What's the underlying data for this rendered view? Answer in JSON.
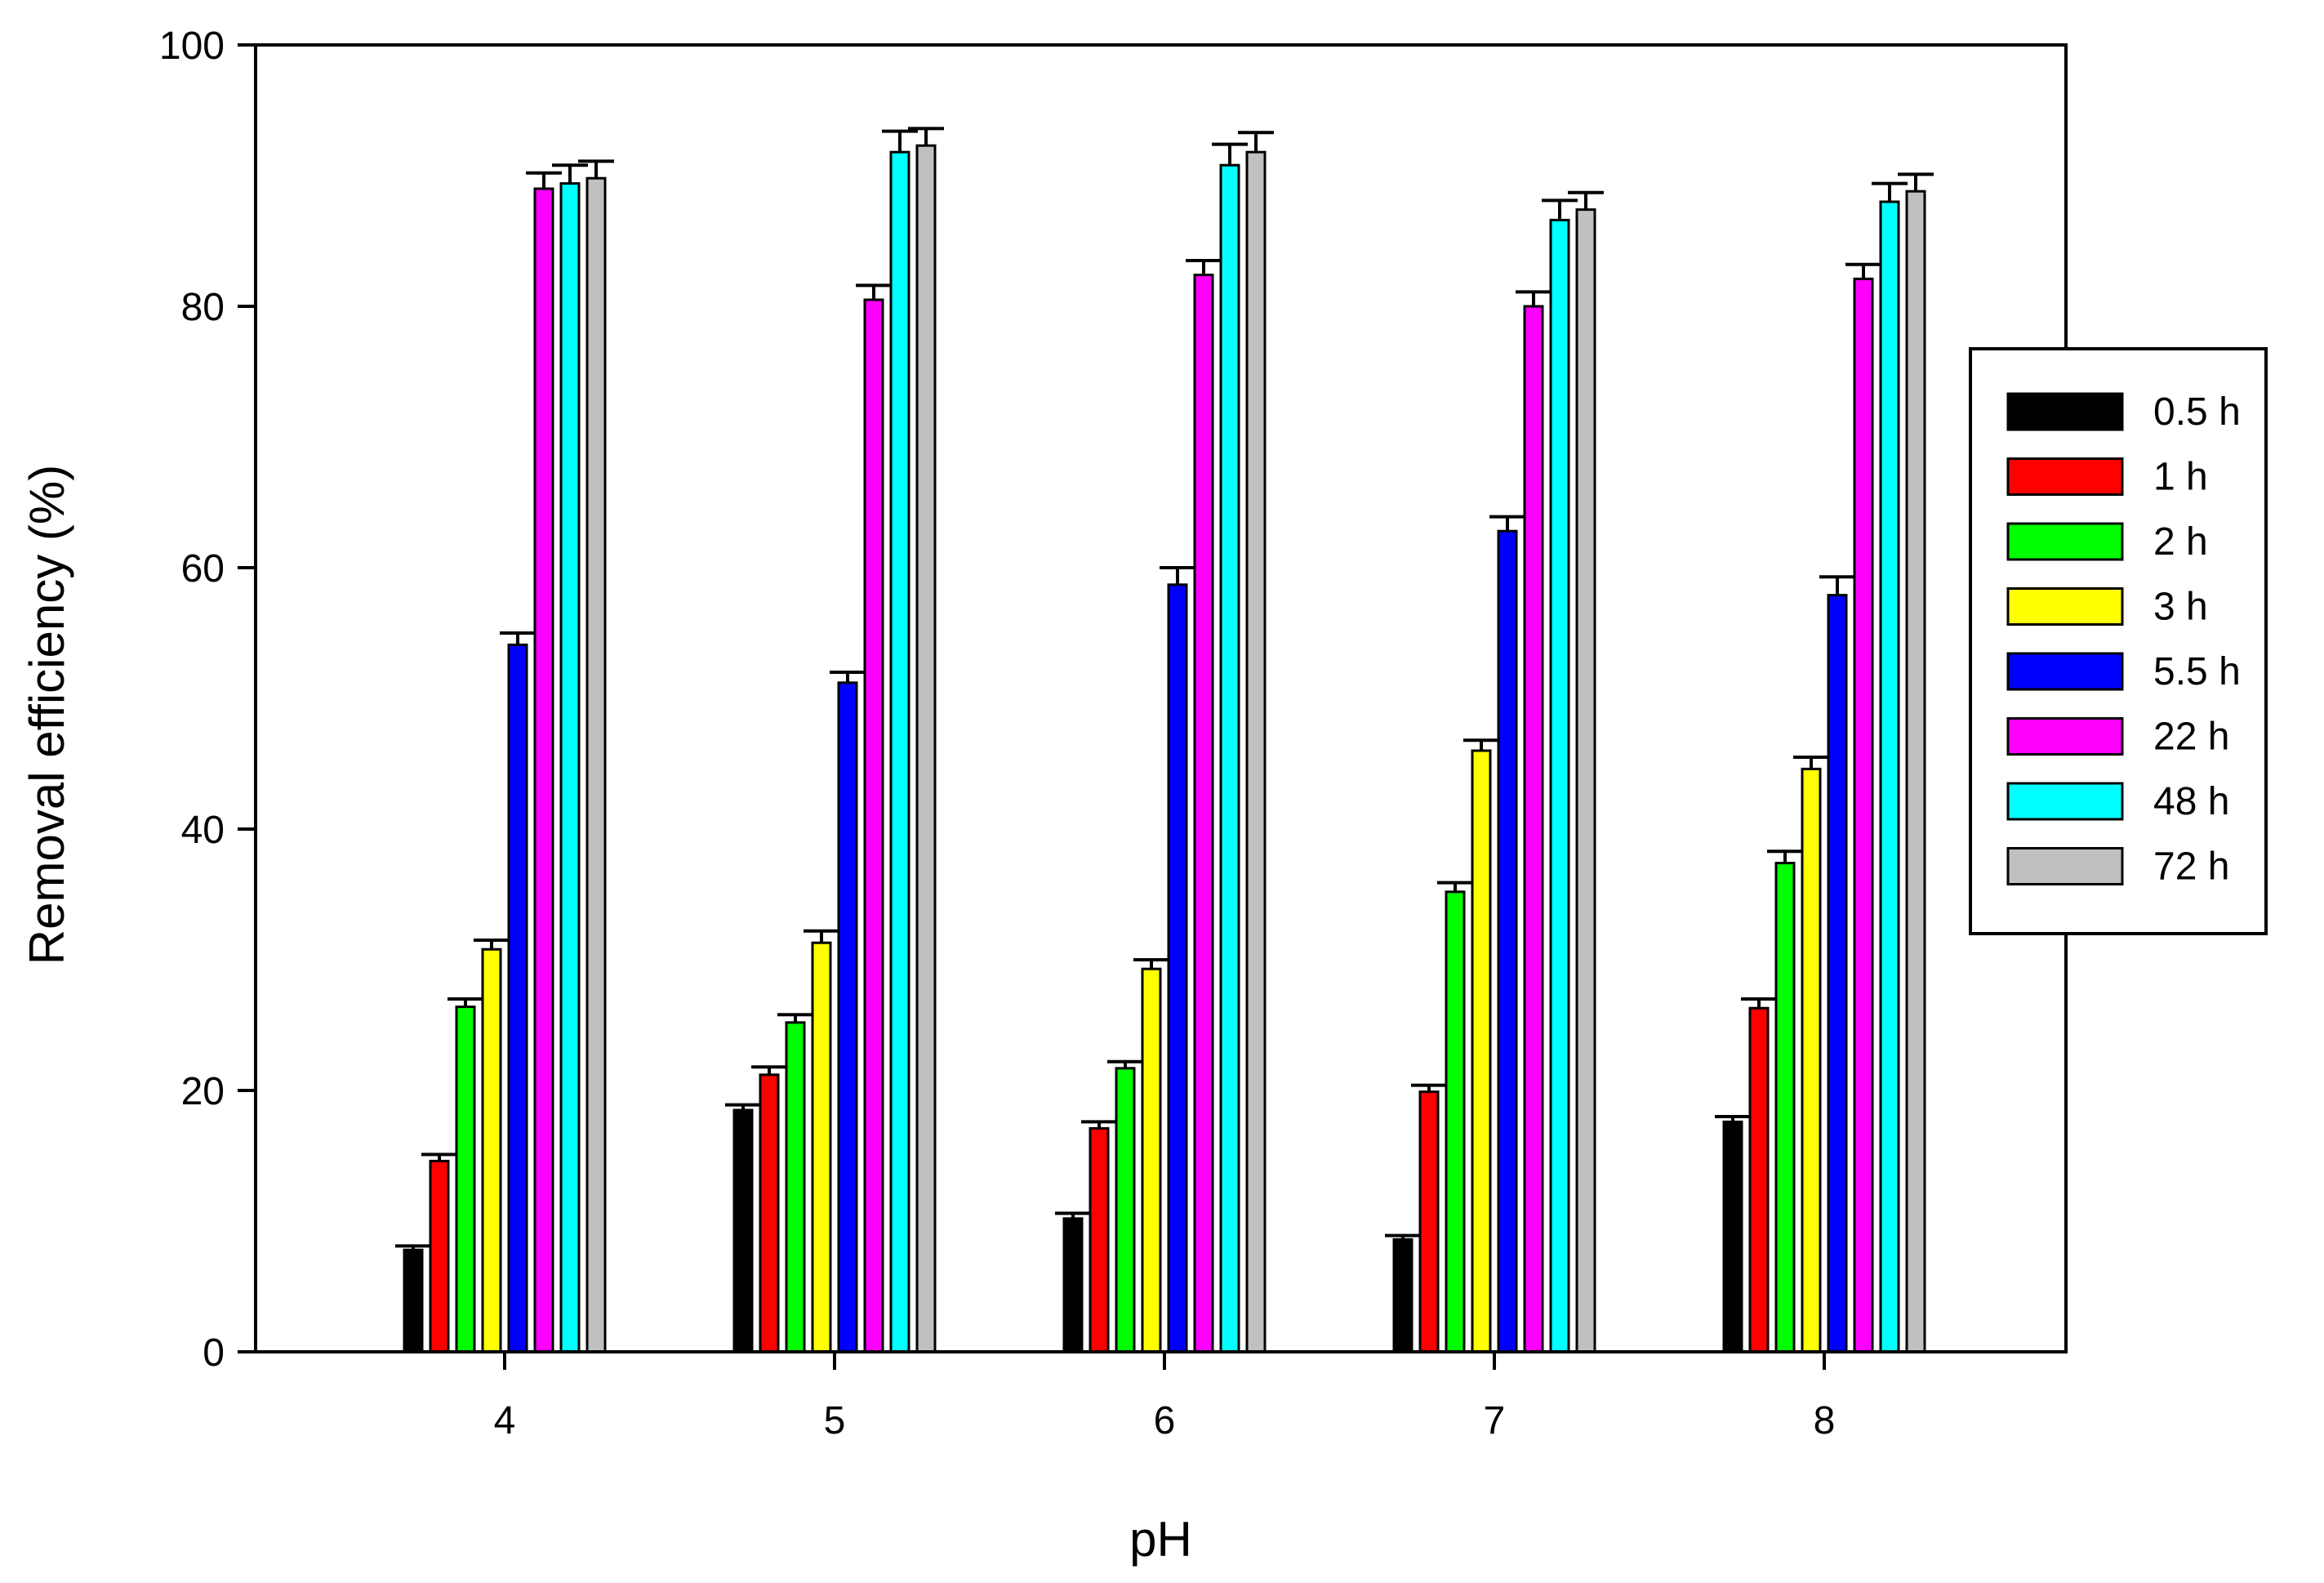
{
  "chart_data": {
    "type": "bar",
    "title": "",
    "xlabel": "pH",
    "ylabel": "Removal efficiency  (%)",
    "categories": [
      "4",
      "5",
      "6",
      "7",
      "8"
    ],
    "ylim": [
      0,
      100
    ],
    "yticks": [
      0,
      20,
      40,
      60,
      80,
      100
    ],
    "grid": false,
    "legend_position": "right",
    "series": [
      {
        "name": "0.5 h",
        "color": "#000000",
        "values": [
          7.8,
          18.5,
          10.2,
          8.6,
          17.6
        ],
        "errors": [
          0.3,
          0.4,
          0.4,
          0.3,
          0.4
        ]
      },
      {
        "name": "1 h",
        "color": "#ff0000",
        "values": [
          14.6,
          21.2,
          17.1,
          19.9,
          26.3
        ],
        "errors": [
          0.5,
          0.6,
          0.5,
          0.5,
          0.7
        ]
      },
      {
        "name": "2 h",
        "color": "#00ff00",
        "values": [
          26.4,
          25.2,
          21.7,
          35.2,
          37.4
        ],
        "errors": [
          0.6,
          0.6,
          0.5,
          0.7,
          0.9
        ]
      },
      {
        "name": "3 h",
        "color": "#ffff00",
        "values": [
          30.8,
          31.3,
          29.3,
          46.0,
          44.6
        ],
        "errors": [
          0.7,
          0.9,
          0.7,
          0.8,
          0.9
        ]
      },
      {
        "name": "5.5 h",
        "color": "#0000ff",
        "values": [
          54.1,
          51.2,
          58.7,
          62.8,
          57.9
        ],
        "errors": [
          0.9,
          0.8,
          1.3,
          1.1,
          1.4
        ]
      },
      {
        "name": "22 h",
        "color": "#ff00ff",
        "values": [
          89.0,
          80.5,
          82.4,
          80.0,
          82.1
        ],
        "errors": [
          1.2,
          1.1,
          1.1,
          1.1,
          1.1
        ]
      },
      {
        "name": "48 h",
        "color": "#00ffff",
        "values": [
          89.4,
          91.8,
          90.8,
          86.6,
          88.0
        ],
        "errors": [
          1.4,
          1.6,
          1.6,
          1.5,
          1.4
        ]
      },
      {
        "name": "72 h",
        "color": "#c0c0c0",
        "values": [
          89.8,
          92.3,
          91.8,
          87.4,
          88.8
        ],
        "errors": [
          1.3,
          1.3,
          1.5,
          1.3,
          1.3
        ]
      }
    ]
  }
}
